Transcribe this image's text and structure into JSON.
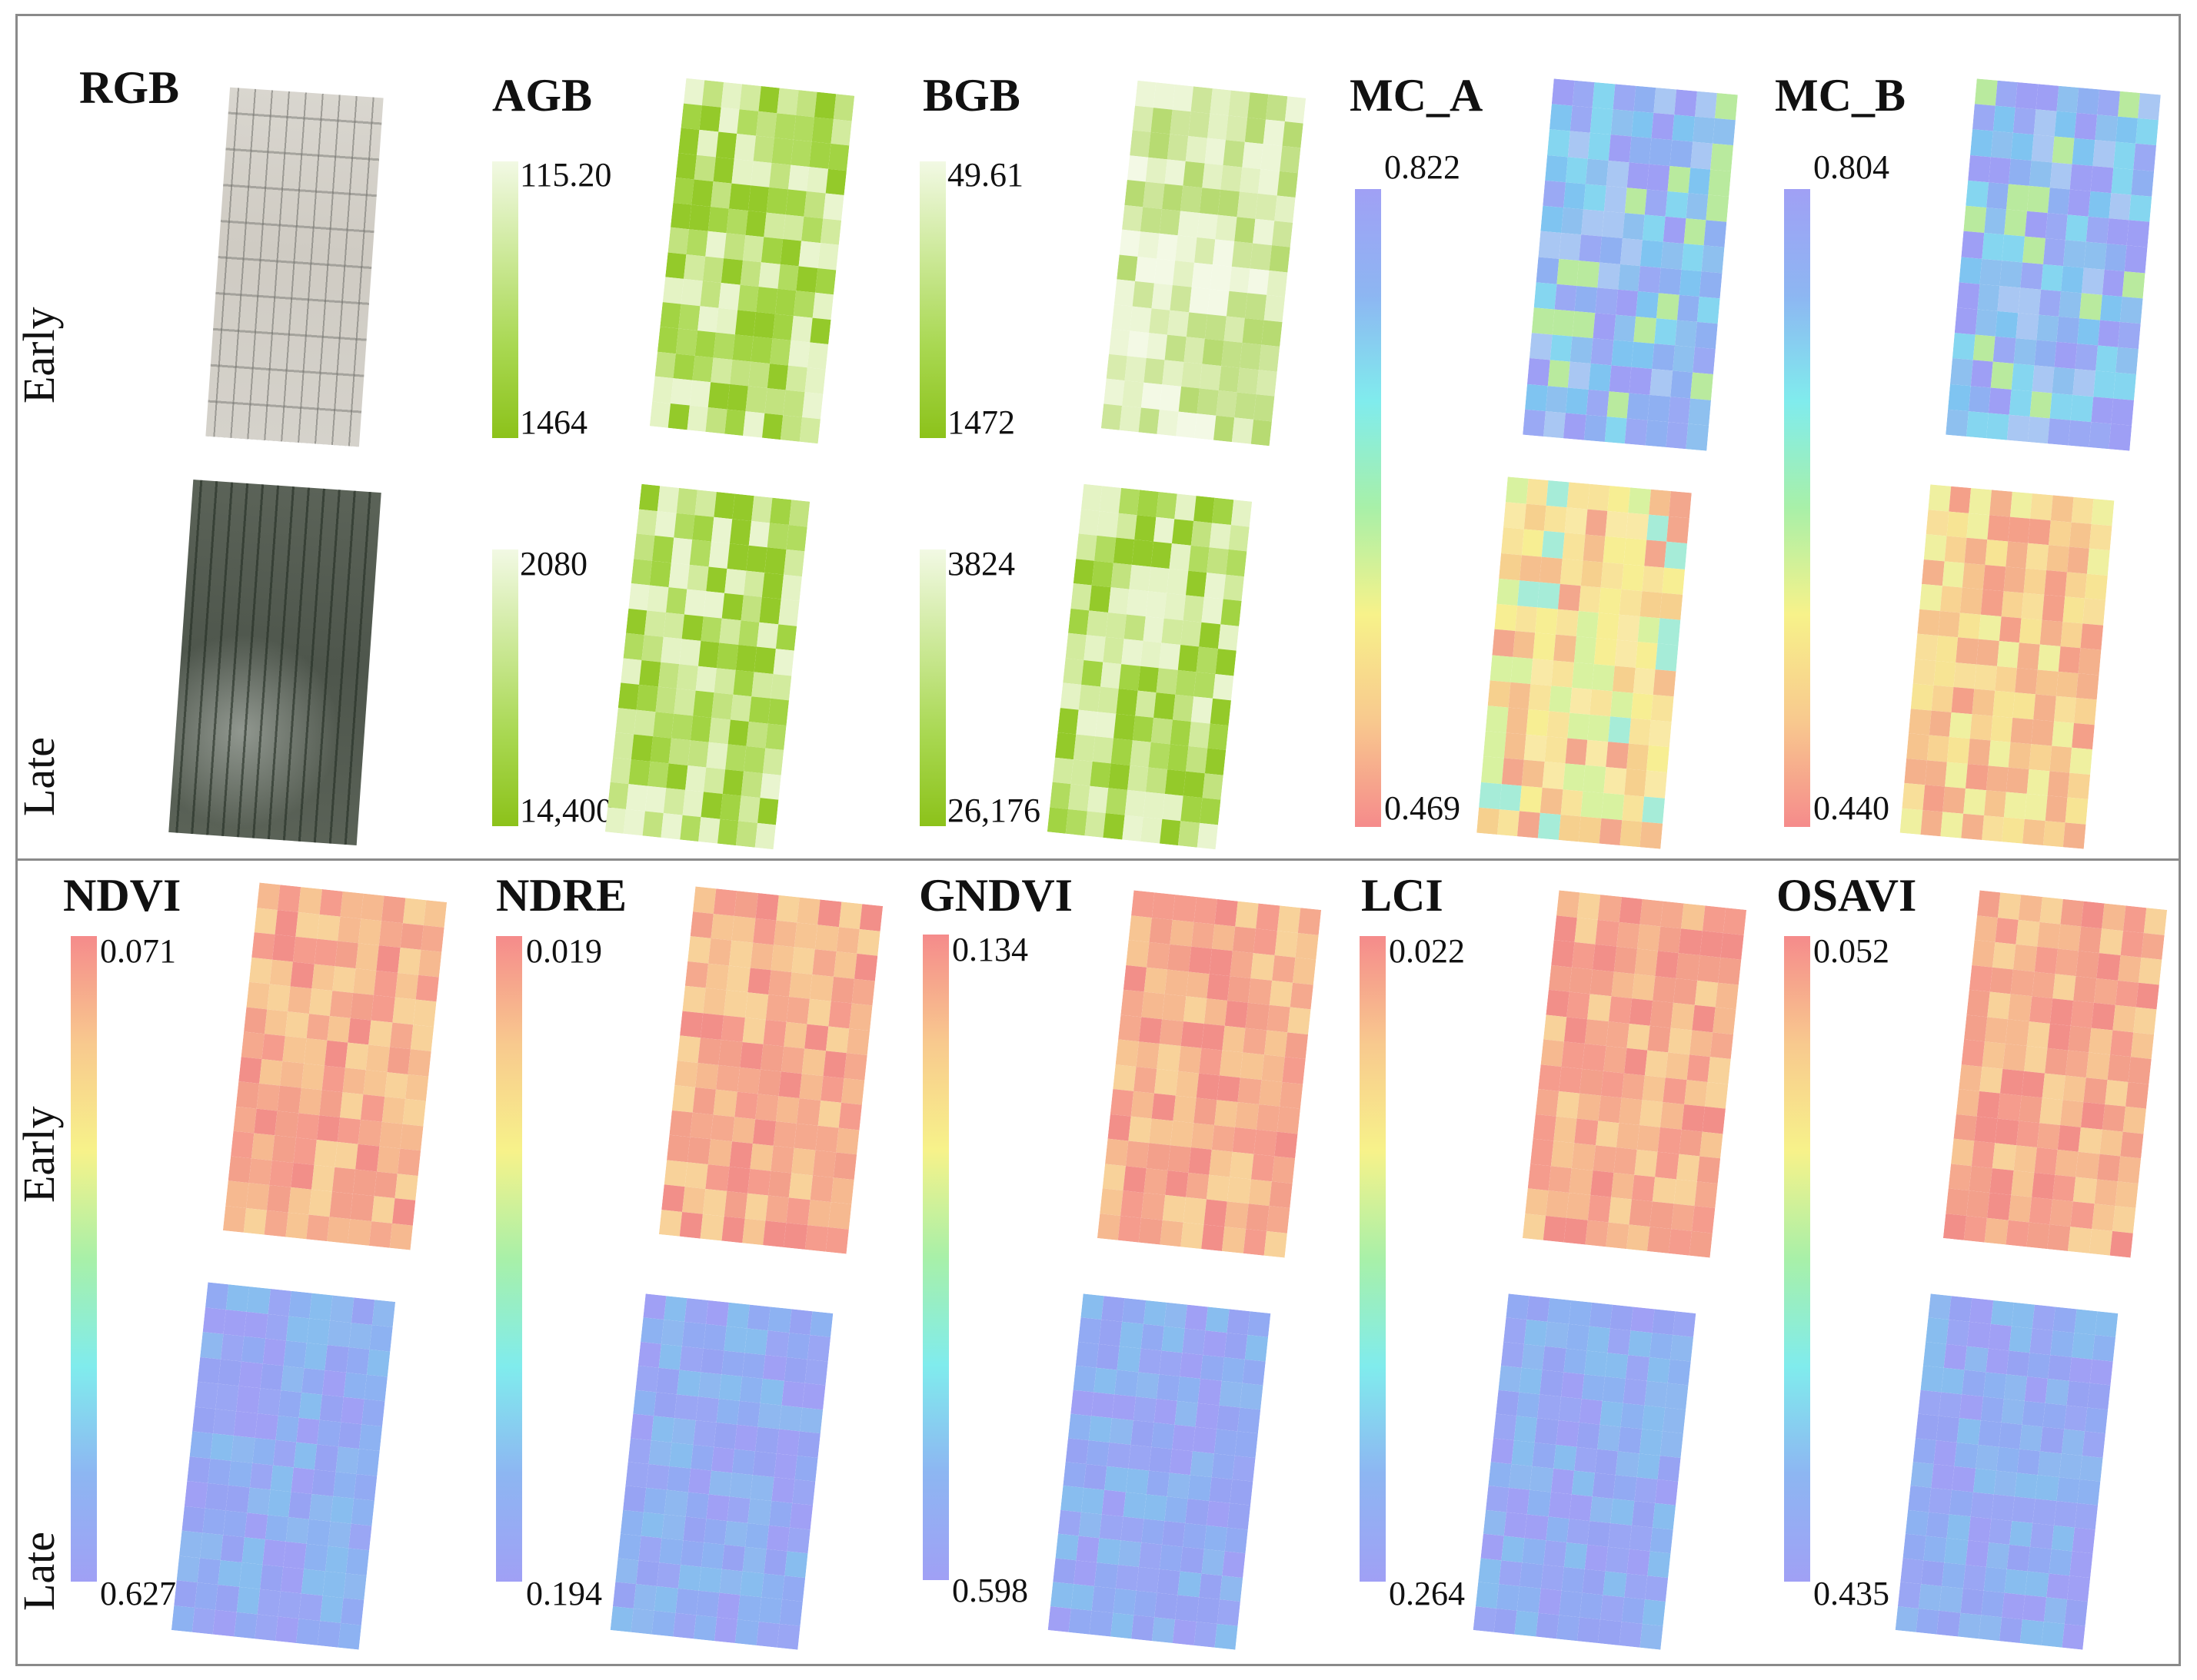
{
  "row_labels": {
    "early": "Early",
    "late": "Late"
  },
  "colormaps": {
    "green": [
      "#f2f9e4",
      "#cde99a",
      "#a9d852",
      "#8cc21a"
    ],
    "rainbow": [
      "#f58b8b",
      "#f8c98e",
      "#f7f28a",
      "#a8f0a8",
      "#80eced",
      "#8db6f2",
      "#a0a0f5"
    ]
  },
  "top_panels": [
    {
      "id": "rgb",
      "title": "RGB"
    },
    {
      "id": "agb",
      "title": "AGB",
      "colormap": "green",
      "early": {
        "max": "115.20",
        "min": "1464"
      },
      "late": {
        "max": "2080",
        "min": "14,400"
      }
    },
    {
      "id": "bgb",
      "title": "BGB",
      "colormap": "green",
      "early": {
        "max": "49.61",
        "min": "1472"
      },
      "late": {
        "max": "3824",
        "min": "26,176"
      }
    },
    {
      "id": "mc_a",
      "title": "MC_A",
      "colormap": "rainbow_reversed",
      "max": "0.822",
      "min": "0.469"
    },
    {
      "id": "mc_b",
      "title": "MC_B",
      "colormap": "rainbow_reversed",
      "max": "0.804",
      "min": "0.440"
    }
  ],
  "bottom_panels": [
    {
      "id": "ndvi",
      "title": "NDVI",
      "colormap": "rainbow",
      "max": "0.071",
      "min": "0.627"
    },
    {
      "id": "ndre",
      "title": "NDRE",
      "colormap": "rainbow",
      "max": "0.019",
      "min": "0.194"
    },
    {
      "id": "gndvi",
      "title": "GNDVI",
      "colormap": "rainbow",
      "max": "0.134",
      "min": "0.598"
    },
    {
      "id": "lci",
      "title": "LCI",
      "colormap": "rainbow",
      "max": "0.022",
      "min": "0.264"
    },
    {
      "id": "osavi",
      "title": "OSAVI",
      "colormap": "rainbow",
      "max": "0.052",
      "min": "0.435"
    }
  ]
}
